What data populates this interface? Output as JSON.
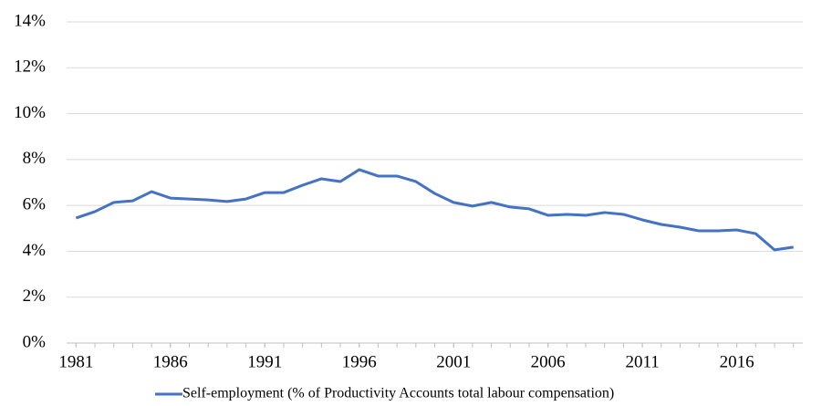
{
  "chart_data": {
    "type": "line",
    "x": [
      1981,
      1982,
      1983,
      1984,
      1985,
      1986,
      1987,
      1988,
      1989,
      1990,
      1991,
      1992,
      1993,
      1994,
      1995,
      1996,
      1997,
      1998,
      1999,
      2000,
      2001,
      2002,
      2003,
      2004,
      2005,
      2006,
      2007,
      2008,
      2009,
      2010,
      2011,
      2012,
      2013,
      2014,
      2015,
      2016,
      2017,
      2018,
      2019
    ],
    "series": [
      {
        "name": "Self-employment (% of Productivity Accounts total labour compensation)",
        "color": "#4472c4",
        "values": [
          5.45,
          5.73,
          6.13,
          6.2,
          6.6,
          6.32,
          6.28,
          6.24,
          6.17,
          6.28,
          6.56,
          6.56,
          6.88,
          7.16,
          7.04,
          7.56,
          7.28,
          7.28,
          7.04,
          6.52,
          6.13,
          5.97,
          6.13,
          5.93,
          5.85,
          5.57,
          5.61,
          5.57,
          5.69,
          5.61,
          5.37,
          5.17,
          5.05,
          4.89,
          4.89,
          4.93,
          4.77,
          4.06,
          4.18
        ]
      }
    ],
    "xlim": [
      1980.5,
      2019.5
    ],
    "xticks": [
      1981,
      1986,
      1991,
      1996,
      2001,
      2006,
      2011,
      2016
    ],
    "ylim": [
      0,
      14
    ],
    "yticks": [
      {
        "value": 0,
        "label": "0%"
      },
      {
        "value": 2,
        "label": "2%"
      },
      {
        "value": 4,
        "label": "4%"
      },
      {
        "value": 6,
        "label": "6%"
      },
      {
        "value": 8,
        "label": "8%"
      },
      {
        "value": 10,
        "label": "10%"
      },
      {
        "value": 12,
        "label": "12%"
      },
      {
        "value": 14,
        "label": "14%"
      }
    ],
    "grid": true,
    "legend": "bottom"
  }
}
